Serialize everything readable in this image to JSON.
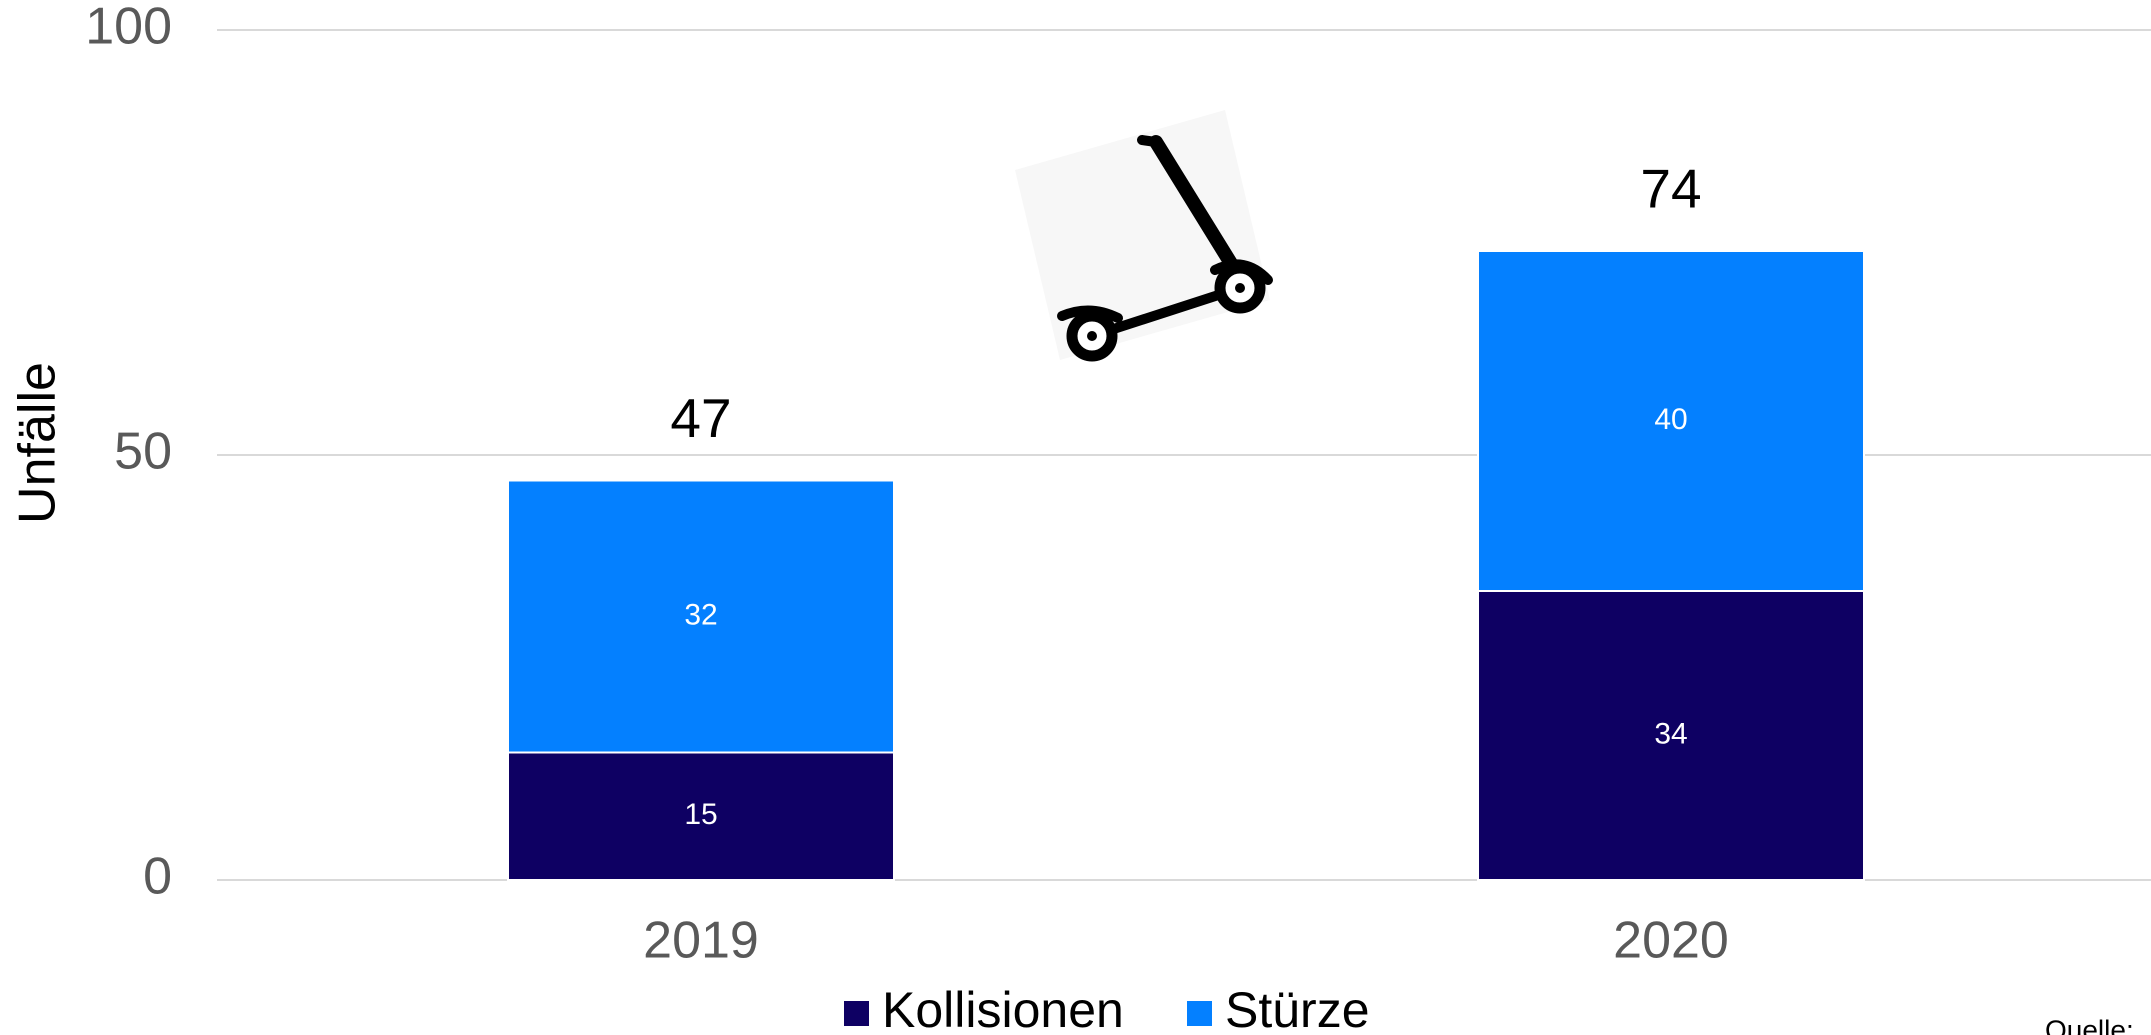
{
  "chart_data": {
    "type": "stacked_bar",
    "y_label": "Unfälle",
    "categories": [
      "2019",
      "2020"
    ],
    "series": [
      {
        "name": "Kollisionen",
        "color": "#0e0063",
        "values": [
          15,
          34
        ]
      },
      {
        "name": "Stürze",
        "color": "#0480ff",
        "values": [
          32,
          40
        ]
      }
    ],
    "totals": [
      47,
      74
    ],
    "ylim": [
      0,
      100
    ],
    "yticks": [
      0,
      50,
      100
    ],
    "grid": true,
    "legend": "bottom",
    "source": "Quelle:"
  }
}
